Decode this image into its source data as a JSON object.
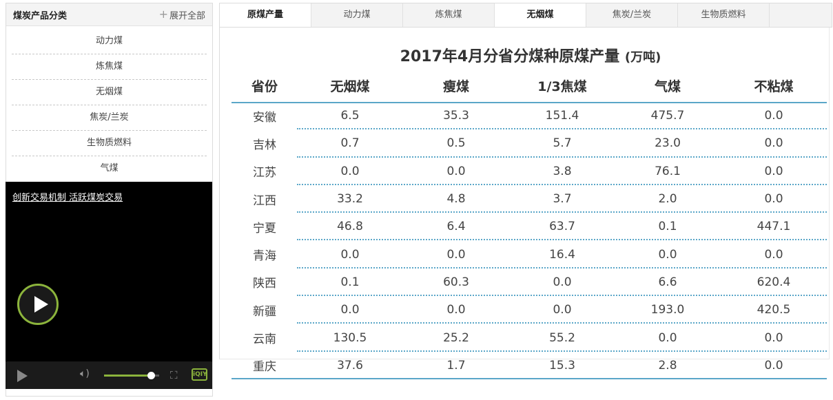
{
  "sidebar": {
    "title": "煤炭产品分类",
    "expand_label": "展开全部",
    "items": [
      {
        "label": "动力煤"
      },
      {
        "label": "炼焦煤"
      },
      {
        "label": "无烟煤"
      },
      {
        "label": "焦炭/兰炭"
      },
      {
        "label": "生物质燃料"
      },
      {
        "label": "气煤"
      }
    ]
  },
  "video": {
    "caption": "创新交易机制 活跃煤炭交易",
    "volume_level": 0.85,
    "logo_text": "iQIY",
    "accent_color": "#8cb43c"
  },
  "tabs": [
    {
      "label": "原煤产量"
    },
    {
      "label": "动力煤"
    },
    {
      "label": "炼焦煤"
    },
    {
      "label": "无烟煤"
    },
    {
      "label": "焦炭/兰炭"
    },
    {
      "label": "生物质燃料"
    }
  ],
  "active_tabs": [
    "原煤产量",
    "无烟煤"
  ],
  "table": {
    "title": "2017年4月分省分煤种原煤产量",
    "unit": "(万吨)",
    "columns": [
      "省份",
      "无烟煤",
      "瘦煤",
      "1/3焦煤",
      "气煤",
      "不粘煤"
    ],
    "rows": [
      [
        "安徽",
        "6.5",
        "35.3",
        "151.4",
        "475.7",
        "0.0"
      ],
      [
        "吉林",
        "0.7",
        "0.5",
        "5.7",
        "23.0",
        "0.0"
      ],
      [
        "江苏",
        "0.0",
        "0.0",
        "3.8",
        "76.1",
        "0.0"
      ],
      [
        "江西",
        "33.2",
        "4.8",
        "3.7",
        "2.0",
        "0.0"
      ],
      [
        "宁夏",
        "46.8",
        "6.4",
        "63.7",
        "0.1",
        "447.1"
      ],
      [
        "青海",
        "0.0",
        "0.0",
        "16.4",
        "0.0",
        "0.0"
      ],
      [
        "陕西",
        "0.1",
        "60.3",
        "0.0",
        "6.6",
        "620.4"
      ],
      [
        "新疆",
        "0.0",
        "0.0",
        "0.0",
        "193.0",
        "420.5"
      ],
      [
        "云南",
        "130.5",
        "25.2",
        "55.2",
        "0.0",
        "0.0"
      ],
      [
        "重庆",
        "37.6",
        "1.7",
        "15.3",
        "2.8",
        "0.0"
      ]
    ],
    "rule_color": "#5aa6c8"
  }
}
